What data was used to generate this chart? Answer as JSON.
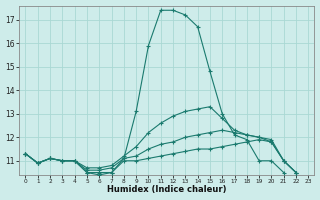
{
  "title": "",
  "xlabel": "Humidex (Indice chaleur)",
  "x": [
    0,
    1,
    2,
    3,
    4,
    5,
    6,
    7,
    8,
    9,
    10,
    11,
    12,
    13,
    14,
    15,
    16,
    17,
    18,
    19,
    20,
    21,
    22,
    23
  ],
  "line_max": [
    11.3,
    10.9,
    11.1,
    11.0,
    11.0,
    10.5,
    10.4,
    10.5,
    11.1,
    13.1,
    15.9,
    17.4,
    17.4,
    17.2,
    16.7,
    14.8,
    13.0,
    12.1,
    11.9,
    11.0,
    11.0,
    10.5,
    null,
    null
  ],
  "line_avg_hi": [
    11.3,
    10.9,
    11.1,
    11.0,
    11.0,
    10.7,
    10.7,
    10.8,
    11.2,
    11.6,
    12.2,
    12.6,
    12.9,
    13.1,
    13.2,
    13.3,
    12.8,
    12.3,
    12.1,
    12.0,
    11.9,
    11.0,
    10.5,
    null
  ],
  "line_avg_lo": [
    11.3,
    10.9,
    11.1,
    11.0,
    11.0,
    10.6,
    10.6,
    10.7,
    11.1,
    11.2,
    11.5,
    11.7,
    11.8,
    12.0,
    12.1,
    12.2,
    12.3,
    12.2,
    12.1,
    12.0,
    11.8,
    11.0,
    10.5,
    null
  ],
  "line_min": [
    11.3,
    10.9,
    11.1,
    11.0,
    11.0,
    10.5,
    10.5,
    10.5,
    11.0,
    11.0,
    11.1,
    11.2,
    11.3,
    11.4,
    11.5,
    11.5,
    11.6,
    11.7,
    11.8,
    11.9,
    11.8,
    11.0,
    10.5,
    null
  ],
  "color": "#1a7a6e",
  "bg_color": "#ceecea",
  "grid_color": "#aad8d4",
  "ylim": [
    10.4,
    17.6
  ],
  "xlim": [
    -0.5,
    23.5
  ],
  "yticks": [
    11,
    12,
    13,
    14,
    15,
    16,
    17
  ],
  "xticks": [
    0,
    1,
    2,
    3,
    4,
    5,
    6,
    7,
    8,
    9,
    10,
    11,
    12,
    13,
    14,
    15,
    16,
    17,
    18,
    19,
    20,
    21,
    22,
    23
  ]
}
